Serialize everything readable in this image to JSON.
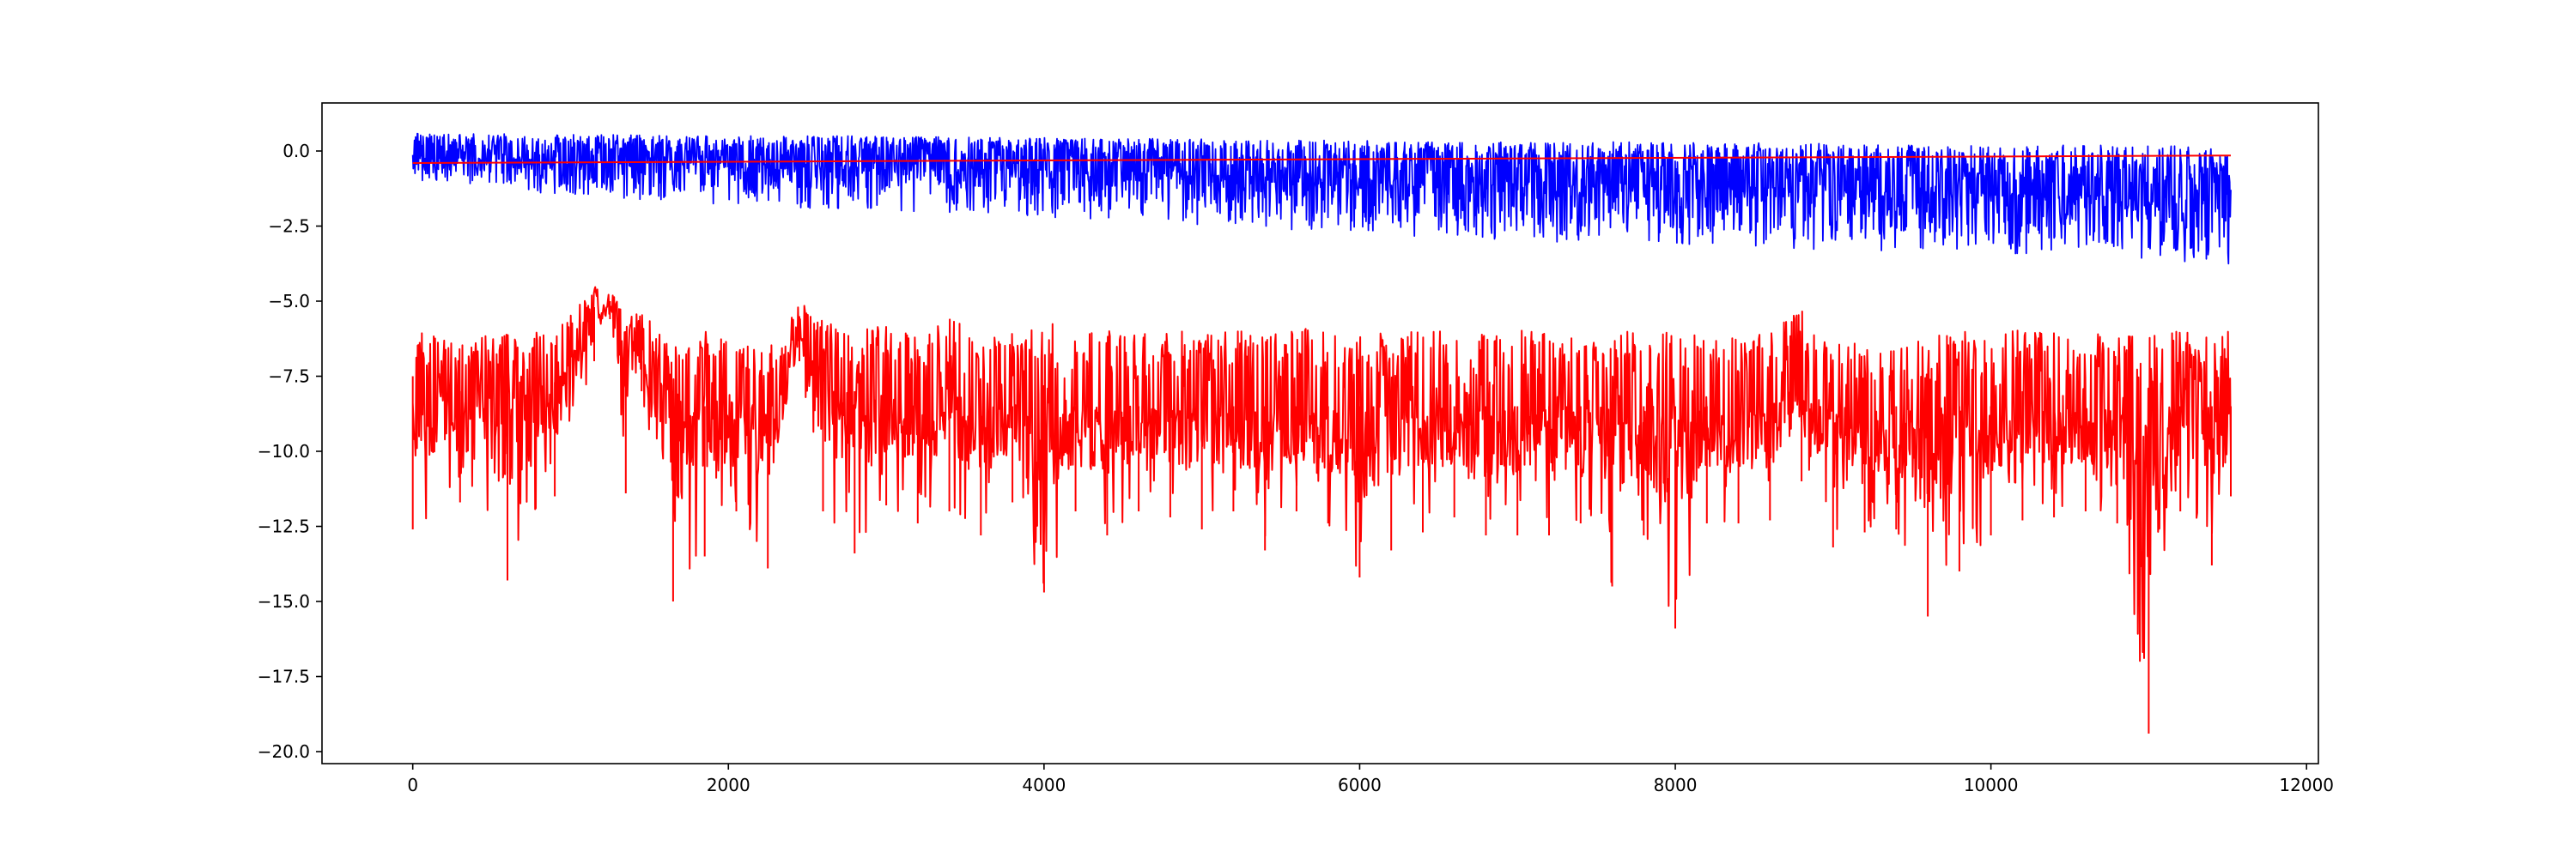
{
  "chart_data": {
    "type": "line",
    "title": "",
    "xlabel": "",
    "ylabel": "",
    "xlim": [
      -575,
      12075
    ],
    "ylim": [
      -20.4,
      1.6
    ],
    "grid": false,
    "legend": "none",
    "x_ticks": [
      {
        "value": 0,
        "label": "0"
      },
      {
        "value": 2000,
        "label": "2000"
      },
      {
        "value": 4000,
        "label": "4000"
      },
      {
        "value": 6000,
        "label": "6000"
      },
      {
        "value": 8000,
        "label": "8000"
      },
      {
        "value": 10000,
        "label": "10000"
      },
      {
        "value": 12000,
        "label": "12000"
      }
    ],
    "y_ticks": [
      {
        "value": 0.0,
        "label": "0.0"
      },
      {
        "value": -2.5,
        "label": "−2.5"
      },
      {
        "value": -5.0,
        "label": "−5.0"
      },
      {
        "value": -7.5,
        "label": "−7.5"
      },
      {
        "value": -10.0,
        "label": "−10.0"
      },
      {
        "value": -12.5,
        "label": "−12.5"
      },
      {
        "value": -15.0,
        "label": "−15.0"
      },
      {
        "value": -17.5,
        "label": "−17.5"
      },
      {
        "value": -20.0,
        "label": "−20.0"
      }
    ],
    "series": [
      {
        "color": "#0000ff",
        "description_points": "dense noisy signal, upper envelope ~0.6 decreasing to ~0.1, lower envelope ~-1.0 at x=0 decreasing to ~-3.8 at x=11500",
        "x": [
          0,
          1000,
          2000,
          3000,
          4000,
          5000,
          6000,
          7000,
          8000,
          9000,
          10000,
          11000,
          11520
        ],
        "upper": [
          0.6,
          0.55,
          0.5,
          0.5,
          0.45,
          0.4,
          0.35,
          0.3,
          0.3,
          0.25,
          0.2,
          0.2,
          0.1
        ],
        "center": [
          -0.2,
          -0.3,
          -0.4,
          -0.5,
          -0.6,
          -0.8,
          -0.9,
          -1.0,
          -1.1,
          -1.3,
          -1.4,
          -1.5,
          -1.6
        ],
        "lower": [
          -1.0,
          -1.5,
          -1.8,
          -2.0,
          -2.2,
          -2.5,
          -2.8,
          -3.0,
          -3.1,
          -3.3,
          -3.4,
          -3.6,
          -3.8
        ]
      },
      {
        "color": "#ff0000",
        "x": [
          0,
          11520
        ],
        "values": [
          -0.4,
          -0.15
        ]
      },
      {
        "color": "#ff0000",
        "x": [
          0,
          300,
          600,
          900,
          1150,
          1250,
          1350,
          1450,
          1650,
          1850,
          2050,
          2250,
          2450,
          2600,
          2800,
          3000,
          3200,
          3400,
          3600,
          3800,
          4000,
          4200,
          4400,
          4600,
          4800,
          5000,
          5200,
          5400,
          5600,
          5800,
          6000,
          6200,
          6400,
          6600,
          6800,
          7000,
          7200,
          7400,
          7600,
          7800,
          8000,
          8200,
          8400,
          8600,
          8800,
          9000,
          9200,
          9400,
          9600,
          9800,
          10000,
          10200,
          10400,
          10600,
          10800,
          11000,
          11200,
          11400,
          11520
        ],
        "upper": [
          -6.0,
          -6.3,
          -6.0,
          -6.0,
          -4.5,
          -4.6,
          -5.5,
          -5.3,
          -6.5,
          -6.0,
          -6.5,
          -6.5,
          -4.9,
          -5.6,
          -6.0,
          -5.8,
          -6.2,
          -5.6,
          -6.0,
          -6.0,
          -5.6,
          -6.1,
          -6.0,
          -6.0,
          -6.0,
          -6.0,
          -6.0,
          -6.0,
          -5.9,
          -5.8,
          -6.1,
          -6.0,
          -6.0,
          -6.0,
          -6.0,
          -5.8,
          -6.0,
          -6.2,
          -6.0,
          -6.0,
          -5.9,
          -6.2,
          -6.2,
          -6.0,
          -5.3,
          -6.3,
          -6.3,
          -6.3,
          -6.2,
          -6.0,
          -6.1,
          -5.8,
          -6.0,
          -6.0,
          -6.2,
          -6.0,
          -6.0,
          -6.0,
          -6.0
        ],
        "center": [
          -7.5,
          -8.0,
          -8.0,
          -7.7,
          -5.2,
          -5.0,
          -6.0,
          -7.0,
          -8.0,
          -8.5,
          -8.0,
          -8.5,
          -5.5,
          -7.5,
          -8.0,
          -8.0,
          -8.5,
          -7.5,
          -8.5,
          -8.5,
          -7.8,
          -8.5,
          -8.5,
          -8.5,
          -8.5,
          -8.5,
          -8.5,
          -8.5,
          -8.5,
          -8.5,
          -8.5,
          -8.5,
          -8.5,
          -8.5,
          -8.5,
          -8.5,
          -8.5,
          -8.5,
          -8.5,
          -8.5,
          -8.5,
          -8.5,
          -8.5,
          -8.5,
          -7.5,
          -8.5,
          -8.5,
          -8.5,
          -8.5,
          -8.5,
          -8.5,
          -8.0,
          -8.5,
          -8.5,
          -8.5,
          -8.5,
          -8.5,
          -8.5,
          -8.5
        ],
        "lower": [
          -12.6,
          -11.7,
          -14.3,
          -11.5,
          -7.0,
          -5.6,
          -11.4,
          -8.0,
          -15.0,
          -13.5,
          -12.0,
          -13.9,
          -7.0,
          -12.0,
          -13.4,
          -11.8,
          -12.4,
          -12.0,
          -12.8,
          -11.7,
          -14.7,
          -12.0,
          -12.8,
          -12.0,
          -12.2,
          -12.6,
          -12.0,
          -13.3,
          -12.0,
          -12.4,
          -14.2,
          -13.3,
          -12.7,
          -12.2,
          -12.8,
          -12.8,
          -12.8,
          -12.4,
          -14.5,
          -12.8,
          -15.9,
          -12.4,
          -12.4,
          -12.3,
          -11.0,
          -13.2,
          -12.7,
          -12.6,
          -15.5,
          -14.0,
          -12.8,
          -12.3,
          -12.2,
          -12.0,
          -12.4,
          -19.4,
          -12.0,
          -13.8,
          -11.5
        ]
      }
    ]
  }
}
